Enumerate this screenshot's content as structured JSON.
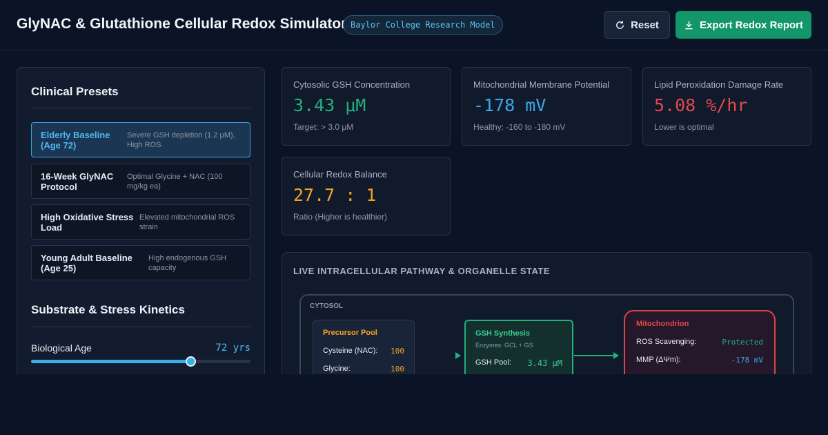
{
  "header": {
    "title": "GlyNAC & Glutathione Cellular Redox Simulator",
    "badge": "Baylor College Research Model",
    "buttons": [
      "Reset",
      "Export Redox Report"
    ]
  },
  "sidebar": {
    "presets_title": "Clinical Presets",
    "presets": [
      {
        "name": "Elderly Baseline (Age 72)",
        "desc": "Severe GSH depletion (1.2 μM), High ROS"
      },
      {
        "name": "16-Week GlyNAC Protocol",
        "desc": "Optimal Glycine + NAC (100 mg/kg ea)"
      },
      {
        "name": "High Oxidative Stress Load",
        "desc": "Elevated mitochondrial ROS strain"
      },
      {
        "name": "Young Adult Baseline (Age 25)",
        "desc": "High endogenous GSH capacity"
      }
    ],
    "kinetics_title": "Substrate & Stress Kinetics",
    "sliders": [
      {
        "label": "Biological Age",
        "value": "72 yrs"
      }
    ]
  },
  "metrics": [
    {
      "label": "Cytosolic GSH Concentration",
      "value": "3.43 μM",
      "note": "Target: > 3.0 μM"
    },
    {
      "label": "Mitochondrial Membrane Potential",
      "value": "-178 mV",
      "note": "Healthy: -160 to -180 mV"
    },
    {
      "label": "Lipid Peroxidation Damage Rate",
      "value": "5.08 %/hr",
      "note": "Lower is optimal"
    },
    {
      "label": "Cellular Redox Balance",
      "value": "27.7 : 1",
      "note": "Ratio (Higher is healthier)"
    }
  ],
  "pathway": {
    "title": "LIVE INTRACELLULAR PATHWAY & ORGANELLE STATE",
    "compartment": "CYTOSOL",
    "precursor": {
      "title": "Precursor Pool",
      "rows": [
        {
          "label": "Cysteine (NAC):",
          "value": "100"
        },
        {
          "label": "Glycine:",
          "value": "100"
        }
      ]
    },
    "synthesis": {
      "title": "GSH Synthesis",
      "subtitle": "Enzymes: GCL + GS",
      "rows": [
        {
          "label": "GSH Pool:",
          "value": "3.43 μM"
        }
      ]
    },
    "mito": {
      "title": "Mitochondrion",
      "rows": [
        {
          "label": "ROS Scavenging:",
          "value": "Protected"
        },
        {
          "label": "MMP (ΔΨm):",
          "value": "-178 mV"
        }
      ]
    }
  }
}
